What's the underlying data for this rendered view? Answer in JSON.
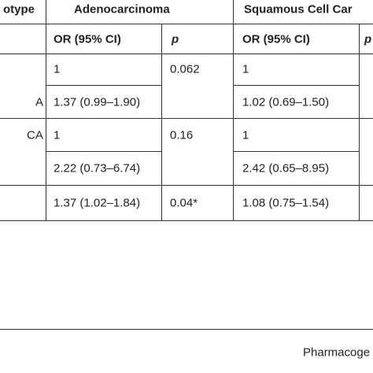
{
  "table": {
    "header": {
      "genotype": "otype",
      "adeno": "Adenocarcinoma",
      "squamous": "Squamous Cell Car"
    },
    "subheader": {
      "or1": "OR (95% CI)",
      "p1": "p",
      "or2": "OR (95% CI)",
      "p2": "p"
    },
    "rows": [
      {
        "or1": "1",
        "p1": "0.062",
        "or2": "1"
      },
      {
        "genotype": "A",
        "or1": "1.37 (0.99–1.90)",
        "or2": "1.02 (0.69–1.50)"
      },
      {
        "genotype": "CA",
        "or1": "1",
        "p1": "0.16",
        "or2": "1"
      },
      {
        "or1": "2.22 (0.73–6.74)",
        "or2": "2.42 (0.65–8.95)"
      },
      {
        "or1": "1.37 (1.02–1.84)",
        "p1": "0.04*",
        "or2": "1.08 (0.75–1.54)"
      }
    ]
  },
  "footer": "Pharmacoge"
}
